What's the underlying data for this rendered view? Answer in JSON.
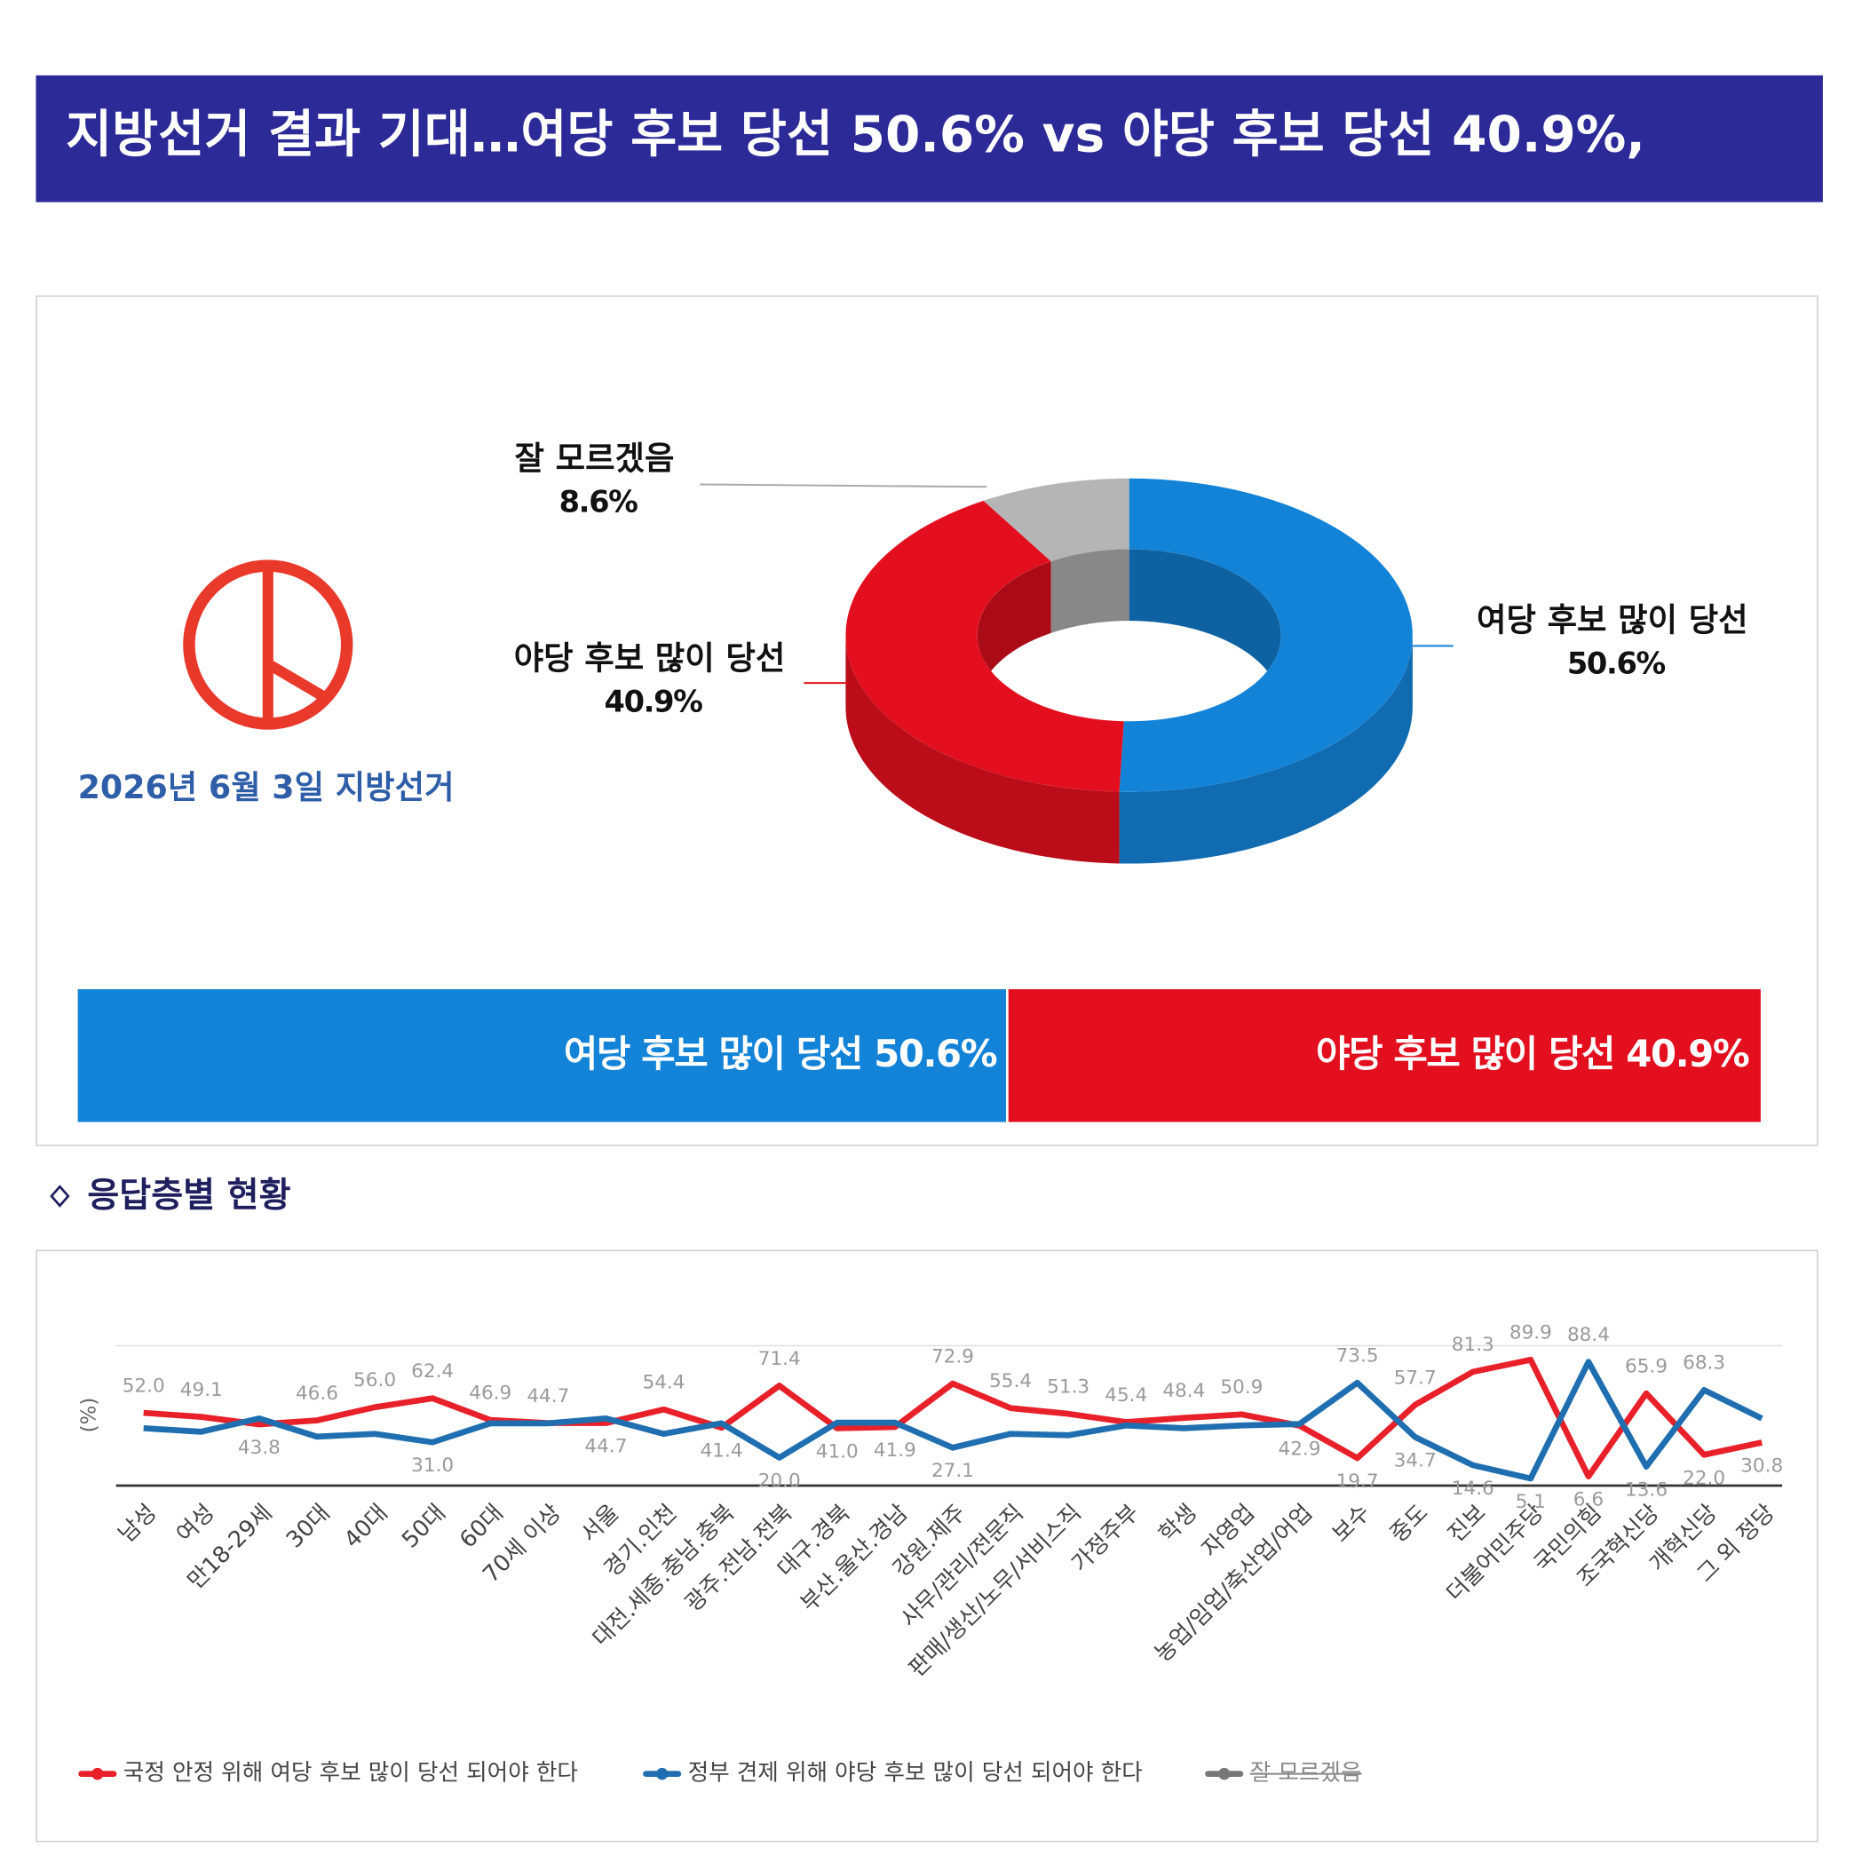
{
  "title": "지방선거 결과 기대…여당 후보 당선 50.6% vs 야당 후보 당선 40.9%,",
  "logo_caption": "2026년 6월 3일 지방선거",
  "section_title": "응답층별 현황",
  "chart_data": [
    {
      "type": "pie",
      "donut": true,
      "categories": [
        "여당 후보 많이 당선",
        "야당 후보 많이 당선",
        "잘 모르겠음"
      ],
      "values": [
        50.6,
        40.9,
        8.6
      ],
      "value_labels": [
        "50.6%",
        "40.9%",
        "8.6%"
      ],
      "colors": [
        "#1383d8",
        "#e30f1f",
        "#b5b5b5"
      ]
    },
    {
      "type": "bar",
      "orientation": "horizontal",
      "stacked": true,
      "categories": [
        "여당 후보 많이 당선",
        "야당 후보 많이 당선"
      ],
      "values": [
        50.6,
        40.9
      ],
      "value_labels": [
        "50.6%",
        "40.9%"
      ],
      "colors": [
        "#1383d8",
        "#e30f1f"
      ]
    },
    {
      "type": "line",
      "y_label": "(%)",
      "ylim": [
        0,
        100
      ],
      "categories": [
        "남성",
        "여성",
        "만18-29세",
        "30대",
        "40대",
        "50대",
        "60대",
        "70세 이상",
        "서울",
        "경기.인천",
        "대전.세종.충남.충북",
        "광주.전남.전북",
        "대구.경북",
        "부산.울산.경남",
        "강원.제주",
        "사무/관리/전문직",
        "판매/생산/노무/서비스직",
        "가정주부",
        "학생",
        "자영업",
        "농업/임업/축산업/어업",
        "보수",
        "중도",
        "진보",
        "더불어민주당",
        "국민의힘",
        "조국혁신당",
        "개혁신당",
        "그 외 정당"
      ],
      "series": [
        {
          "name": "국정 안정 위해 여당 후보 많이 당선 되어야 한다",
          "color": "#e8202a",
          "values": [
            52.0,
            49.1,
            43.8,
            46.6,
            56.0,
            62.4,
            46.9,
            44.7,
            44.7,
            54.4,
            41.4,
            71.4,
            41.0,
            41.9,
            72.9,
            55.4,
            51.3,
            45.4,
            48.4,
            50.9,
            42.9,
            19.7,
            57.7,
            81.3,
            89.9,
            6.6,
            65.9,
            22.0,
            30.8
          ],
          "value_labels": [
            "52.0",
            "49.1",
            "43.8",
            "46.6",
            "56.0",
            "62.4",
            "46.9",
            "44.7",
            "44.7",
            "54.4",
            "41.4",
            "71.4",
            "41.0",
            "41.9",
            "72.9",
            "55.4",
            "51.3",
            "45.4",
            "48.4",
            "50.9",
            "42.9",
            "19.7",
            "57.7",
            "81.3",
            "89.9",
            "6.6",
            "65.9",
            "22.0",
            "30.8"
          ]
        },
        {
          "name": "정부 견제 위해 야당 후보 많이 당선 되어야 한다",
          "color": "#1f6fb0",
          "values": [
            41,
            38.5,
            48,
            35,
            37,
            31.0,
            44.5,
            44.5,
            48,
            37,
            44.5,
            20.0,
            45,
            45,
            27.1,
            37,
            36,
            43,
            41,
            43,
            44,
            73.5,
            34.7,
            14.6,
            5.1,
            88.4,
            13.6,
            68.3,
            48
          ],
          "value_labels": [
            null,
            null,
            null,
            null,
            null,
            "31.0",
            null,
            null,
            null,
            null,
            null,
            "20.0",
            null,
            null,
            "27.1",
            null,
            null,
            null,
            null,
            null,
            null,
            "73.5",
            "34.7",
            "14.6",
            "5.1",
            "88.4",
            "13.6",
            "68.3",
            null
          ]
        },
        {
          "name": "잘 모르겠음",
          "color": "#777777",
          "hidden": true,
          "values": [
            null,
            null,
            null,
            null,
            null,
            null,
            null,
            null,
            null,
            null,
            null,
            null,
            null,
            null,
            null,
            null,
            null,
            null,
            null,
            null,
            null,
            null,
            null,
            null,
            null,
            null,
            null,
            null,
            null
          ]
        }
      ]
    }
  ]
}
